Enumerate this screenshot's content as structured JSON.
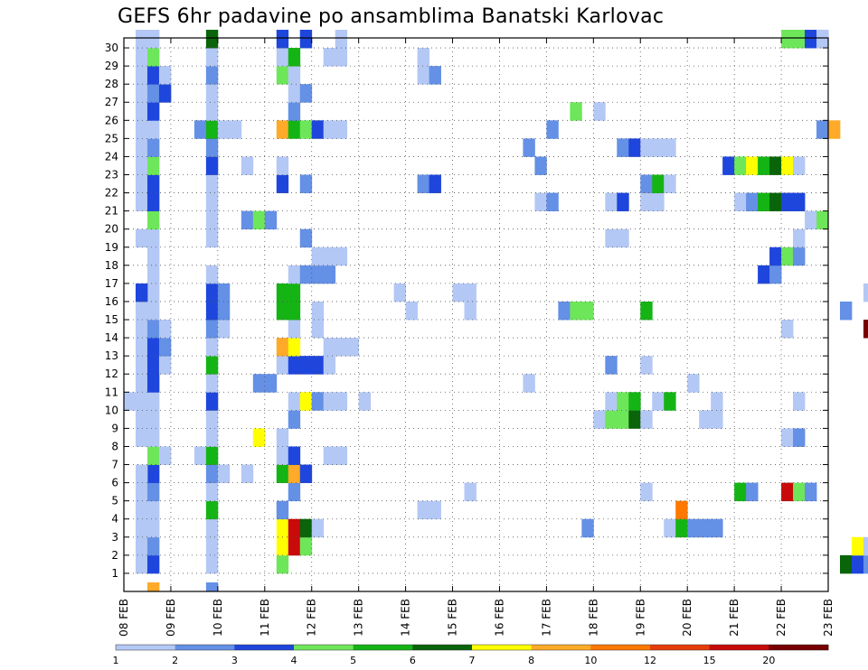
{
  "chart_data": {
    "type": "heatmap",
    "title": "GEFS 6hr padavine po ansamblima Banatski Karlovac",
    "x_labels": [
      "08 FEB",
      "09 FEB",
      "10 FEB",
      "11 FEB",
      "12 FEB",
      "13 FEB",
      "14 FEB",
      "15 FEB",
      "16 FEB",
      "17 FEB",
      "18 FEB",
      "19 FEB",
      "20 FEB",
      "21 FEB",
      "22 FEB",
      "23 FEB"
    ],
    "y_labels": [
      "1",
      "2",
      "3",
      "4",
      "5",
      "6",
      "7",
      "8",
      "9",
      "10",
      "11",
      "12",
      "13",
      "14",
      "15",
      "16",
      "17",
      "18",
      "19",
      "20",
      "21",
      "22",
      "23",
      "24",
      "25",
      "26",
      "27",
      "28",
      "29",
      "30"
    ],
    "xlim": [
      0,
      60
    ],
    "ylim": [
      0,
      30
    ],
    "grid": true,
    "colorbar": {
      "labels": [
        "1",
        "2",
        "3",
        "4",
        "5",
        "6",
        "7",
        "8",
        "10",
        "12",
        "15",
        "20"
      ],
      "colors": [
        "#b4c8f5",
        "#6490e6",
        "#1e46dc",
        "#6ee65a",
        "#14b414",
        "#0a640a",
        "#ffff00",
        "#ffaa28",
        "#ff7800",
        "#e63c0a",
        "#c80a0a",
        "#780000"
      ]
    },
    "cells": [
      [
        1,
        1,
        "a"
      ],
      [
        1,
        2,
        "a"
      ],
      [
        1,
        3,
        "a"
      ],
      [
        1,
        4,
        "a"
      ],
      [
        1,
        5,
        "a"
      ],
      [
        1,
        8,
        "a"
      ],
      [
        1,
        9,
        "a"
      ],
      [
        1,
        10,
        "a"
      ],
      [
        1,
        11,
        "a"
      ],
      [
        1,
        12,
        "a"
      ],
      [
        1,
        13,
        "a"
      ],
      [
        1,
        14,
        "a"
      ],
      [
        1,
        15,
        "a"
      ],
      [
        1,
        19,
        "a"
      ],
      [
        1,
        21,
        "a"
      ],
      [
        1,
        22,
        "a"
      ],
      [
        1,
        23,
        "a"
      ],
      [
        1,
        24,
        "a"
      ],
      [
        1,
        25,
        "a"
      ],
      [
        1,
        26,
        "a"
      ],
      [
        1,
        27,
        "a"
      ],
      [
        1,
        28,
        "a"
      ],
      [
        1,
        29,
        "a"
      ],
      [
        1,
        30,
        "a"
      ],
      [
        2,
        1,
        "c"
      ],
      [
        2,
        2,
        "b"
      ],
      [
        2,
        3,
        "a"
      ],
      [
        2,
        4,
        "a"
      ],
      [
        2,
        5,
        "b"
      ],
      [
        2,
        6,
        "c"
      ],
      [
        2,
        7,
        "d"
      ],
      [
        2,
        8,
        "a"
      ],
      [
        2,
        9,
        "a"
      ],
      [
        2,
        10,
        "a"
      ],
      [
        2,
        11,
        "c"
      ],
      [
        2,
        12,
        "c"
      ],
      [
        2,
        13,
        "c"
      ],
      [
        2,
        14,
        "b"
      ],
      [
        2,
        15,
        "a"
      ],
      [
        2,
        16,
        "a"
      ],
      [
        2,
        17,
        "a"
      ],
      [
        2,
        18,
        "a"
      ],
      [
        2,
        19,
        "a"
      ],
      [
        2,
        20,
        "d"
      ],
      [
        2,
        21,
        "c"
      ],
      [
        2,
        22,
        "c"
      ],
      [
        2,
        23,
        "d"
      ],
      [
        2,
        24,
        "b"
      ],
      [
        2,
        25,
        "a"
      ],
      [
        2,
        26,
        "c"
      ],
      [
        2,
        27,
        "b"
      ],
      [
        2,
        28,
        "c"
      ],
      [
        2,
        29,
        "d"
      ],
      [
        2,
        30,
        "a"
      ],
      [
        0,
        10,
        "a"
      ],
      [
        1,
        6,
        "a"
      ],
      [
        1,
        16,
        "c"
      ],
      [
        2,
        0,
        "h"
      ],
      [
        3,
        7,
        "a"
      ],
      [
        3,
        12,
        "a"
      ],
      [
        3,
        13,
        "b"
      ],
      [
        3,
        14,
        "a"
      ],
      [
        3,
        27,
        "c"
      ],
      [
        3,
        28,
        "a"
      ],
      [
        6,
        7,
        "a"
      ],
      [
        6,
        25,
        "b"
      ],
      [
        7,
        0,
        "b"
      ],
      [
        7,
        1,
        "a"
      ],
      [
        7,
        2,
        "a"
      ],
      [
        7,
        3,
        "a"
      ],
      [
        7,
        4,
        "e"
      ],
      [
        7,
        5,
        "a"
      ],
      [
        7,
        6,
        "b"
      ],
      [
        7,
        7,
        "e"
      ],
      [
        7,
        8,
        "a"
      ],
      [
        7,
        9,
        "a"
      ],
      [
        7,
        10,
        "c"
      ],
      [
        7,
        11,
        "a"
      ],
      [
        7,
        12,
        "e"
      ],
      [
        7,
        13,
        "a"
      ],
      [
        7,
        14,
        "b"
      ],
      [
        7,
        15,
        "c"
      ],
      [
        7,
        16,
        "c"
      ],
      [
        7,
        17,
        "a"
      ],
      [
        7,
        19,
        "a"
      ],
      [
        7,
        20,
        "a"
      ],
      [
        7,
        21,
        "a"
      ],
      [
        7,
        22,
        "a"
      ],
      [
        7,
        23,
        "c"
      ],
      [
        7,
        24,
        "b"
      ],
      [
        7,
        25,
        "e"
      ],
      [
        7,
        26,
        "a"
      ],
      [
        7,
        27,
        "a"
      ],
      [
        7,
        28,
        "b"
      ],
      [
        7,
        29,
        "a"
      ],
      [
        7,
        30,
        "f"
      ],
      [
        8,
        6,
        "a"
      ],
      [
        8,
        14,
        "a"
      ],
      [
        8,
        15,
        "b"
      ],
      [
        8,
        16,
        "b"
      ],
      [
        8,
        25,
        "a"
      ],
      [
        9,
        25,
        "a"
      ],
      [
        10,
        6,
        "a"
      ],
      [
        10,
        20,
        "b"
      ],
      [
        10,
        23,
        "a"
      ],
      [
        11,
        8,
        "g"
      ],
      [
        11,
        11,
        "b"
      ],
      [
        11,
        20,
        "d"
      ],
      [
        12,
        11,
        "b"
      ],
      [
        12,
        20,
        "b"
      ],
      [
        13,
        1,
        "d"
      ],
      [
        13,
        2,
        "g"
      ],
      [
        13,
        3,
        "g"
      ],
      [
        13,
        4,
        "b"
      ],
      [
        13,
        6,
        "e"
      ],
      [
        13,
        7,
        "a"
      ],
      [
        13,
        8,
        "a"
      ],
      [
        13,
        12,
        "a"
      ],
      [
        13,
        13,
        "h"
      ],
      [
        13,
        15,
        "e"
      ],
      [
        13,
        16,
        "e"
      ],
      [
        13,
        22,
        "c"
      ],
      [
        13,
        23,
        "a"
      ],
      [
        13,
        25,
        "h"
      ],
      [
        13,
        28,
        "d"
      ],
      [
        13,
        29,
        "a"
      ],
      [
        13,
        30,
        "c"
      ],
      [
        14,
        2,
        "k"
      ],
      [
        14,
        3,
        "k"
      ],
      [
        14,
        5,
        "b"
      ],
      [
        14,
        6,
        "h"
      ],
      [
        14,
        7,
        "c"
      ],
      [
        14,
        9,
        "b"
      ],
      [
        14,
        10,
        "a"
      ],
      [
        14,
        12,
        "c"
      ],
      [
        14,
        13,
        "g"
      ],
      [
        14,
        14,
        "a"
      ],
      [
        14,
        15,
        "e"
      ],
      [
        14,
        16,
        "e"
      ],
      [
        14,
        17,
        "a"
      ],
      [
        14,
        25,
        "e"
      ],
      [
        14,
        26,
        "b"
      ],
      [
        14,
        27,
        "a"
      ],
      [
        14,
        28,
        "a"
      ],
      [
        14,
        29,
        "e"
      ],
      [
        15,
        2,
        "d"
      ],
      [
        15,
        3,
        "f"
      ],
      [
        15,
        6,
        "c"
      ],
      [
        15,
        10,
        "g"
      ],
      [
        15,
        12,
        "c"
      ],
      [
        15,
        17,
        "b"
      ],
      [
        15,
        19,
        "b"
      ],
      [
        15,
        22,
        "b"
      ],
      [
        15,
        25,
        "d"
      ],
      [
        15,
        27,
        "b"
      ],
      [
        15,
        30,
        "c"
      ],
      [
        16,
        3,
        "a"
      ],
      [
        16,
        10,
        "b"
      ],
      [
        16,
        12,
        "c"
      ],
      [
        16,
        14,
        "a"
      ],
      [
        16,
        15,
        "a"
      ],
      [
        16,
        17,
        "b"
      ],
      [
        16,
        18,
        "a"
      ],
      [
        16,
        25,
        "c"
      ],
      [
        17,
        7,
        "a"
      ],
      [
        17,
        10,
        "a"
      ],
      [
        17,
        12,
        "a"
      ],
      [
        17,
        13,
        "a"
      ],
      [
        17,
        17,
        "b"
      ],
      [
        17,
        18,
        "a"
      ],
      [
        17,
        25,
        "a"
      ],
      [
        17,
        29,
        "a"
      ],
      [
        18,
        13,
        "a"
      ],
      [
        18,
        10,
        "a"
      ],
      [
        18,
        7,
        "a"
      ],
      [
        18,
        18,
        "a"
      ],
      [
        18,
        25,
        "a"
      ],
      [
        18,
        29,
        "a"
      ],
      [
        18,
        30,
        "a"
      ],
      [
        19,
        13,
        "a"
      ],
      [
        20,
        10,
        "a"
      ],
      [
        23,
        16,
        "a"
      ],
      [
        24,
        15,
        "a"
      ],
      [
        25,
        4,
        "a"
      ],
      [
        25,
        22,
        "b"
      ],
      [
        25,
        28,
        "a"
      ],
      [
        25,
        29,
        "a"
      ],
      [
        26,
        4,
        "a"
      ],
      [
        26,
        22,
        "c"
      ],
      [
        26,
        28,
        "b"
      ],
      [
        28,
        16,
        "a"
      ],
      [
        29,
        5,
        "a"
      ],
      [
        29,
        15,
        "a"
      ],
      [
        29,
        16,
        "a"
      ],
      [
        34,
        11,
        "a"
      ],
      [
        34,
        24,
        "b"
      ],
      [
        35,
        21,
        "a"
      ],
      [
        35,
        23,
        "b"
      ],
      [
        36,
        21,
        "b"
      ],
      [
        36,
        25,
        "b"
      ],
      [
        37,
        15,
        "b"
      ],
      [
        38,
        15,
        "d"
      ],
      [
        38,
        26,
        "d"
      ],
      [
        39,
        3,
        "b"
      ],
      [
        39,
        15,
        "d"
      ],
      [
        40,
        9,
        "a"
      ],
      [
        40,
        26,
        "a"
      ],
      [
        41,
        9,
        "d"
      ],
      [
        41,
        10,
        "a"
      ],
      [
        41,
        12,
        "b"
      ],
      [
        41,
        19,
        "a"
      ],
      [
        41,
        21,
        "a"
      ],
      [
        42,
        9,
        "d"
      ],
      [
        42,
        10,
        "d"
      ],
      [
        42,
        19,
        "a"
      ],
      [
        42,
        21,
        "c"
      ],
      [
        42,
        24,
        "b"
      ],
      [
        43,
        9,
        "f"
      ],
      [
        43,
        10,
        "e"
      ],
      [
        43,
        24,
        "c"
      ],
      [
        44,
        5,
        "a"
      ],
      [
        44,
        9,
        "a"
      ],
      [
        44,
        12,
        "a"
      ],
      [
        44,
        15,
        "e"
      ],
      [
        44,
        21,
        "a"
      ],
      [
        44,
        22,
        "b"
      ],
      [
        44,
        24,
        "a"
      ],
      [
        45,
        10,
        "a"
      ],
      [
        45,
        21,
        "a"
      ],
      [
        45,
        22,
        "e"
      ],
      [
        45,
        24,
        "a"
      ],
      [
        46,
        3,
        "a"
      ],
      [
        46,
        10,
        "e"
      ],
      [
        46,
        22,
        "a"
      ],
      [
        46,
        24,
        "a"
      ],
      [
        47,
        3,
        "e"
      ],
      [
        47,
        4,
        "i"
      ],
      [
        48,
        3,
        "b"
      ],
      [
        48,
        11,
        "a"
      ],
      [
        49,
        3,
        "b"
      ],
      [
        49,
        9,
        "a"
      ],
      [
        50,
        3,
        "b"
      ],
      [
        50,
        9,
        "a"
      ],
      [
        50,
        10,
        "a"
      ],
      [
        51,
        23,
        "c"
      ],
      [
        52,
        5,
        "e"
      ],
      [
        52,
        21,
        "a"
      ],
      [
        52,
        23,
        "d"
      ],
      [
        53,
        5,
        "b"
      ],
      [
        53,
        21,
        "b"
      ],
      [
        53,
        23,
        "g"
      ],
      [
        54,
        17,
        "c"
      ],
      [
        54,
        21,
        "e"
      ],
      [
        54,
        23,
        "e"
      ],
      [
        55,
        17,
        "b"
      ],
      [
        55,
        18,
        "c"
      ],
      [
        55,
        21,
        "f"
      ],
      [
        55,
        23,
        "f"
      ],
      [
        56,
        5,
        "k"
      ],
      [
        56,
        8,
        "a"
      ],
      [
        56,
        14,
        "a"
      ],
      [
        56,
        18,
        "d"
      ],
      [
        56,
        21,
        "c"
      ],
      [
        56,
        23,
        "g"
      ],
      [
        57,
        5,
        "d"
      ],
      [
        57,
        8,
        "b"
      ],
      [
        57,
        10,
        "a"
      ],
      [
        57,
        18,
        "b"
      ],
      [
        57,
        19,
        "a"
      ],
      [
        57,
        21,
        "c"
      ],
      [
        57,
        23,
        "a"
      ],
      [
        58,
        5,
        "b"
      ],
      [
        58,
        20,
        "a"
      ],
      [
        59,
        20,
        "d"
      ],
      [
        59,
        25,
        "b"
      ],
      [
        59,
        30,
        "c"
      ],
      [
        56,
        30,
        "d"
      ],
      [
        57,
        30,
        "d"
      ],
      [
        58,
        30,
        "c"
      ],
      [
        59,
        30,
        "a"
      ],
      [
        60,
        25,
        "h"
      ],
      [
        61,
        1,
        "f"
      ],
      [
        61,
        15,
        "b"
      ],
      [
        62,
        1,
        "c"
      ],
      [
        62,
        2,
        "g"
      ],
      [
        63,
        1,
        "b"
      ],
      [
        63,
        2,
        "a"
      ],
      [
        63,
        16,
        "a"
      ],
      [
        63,
        14,
        "l"
      ]
    ]
  }
}
